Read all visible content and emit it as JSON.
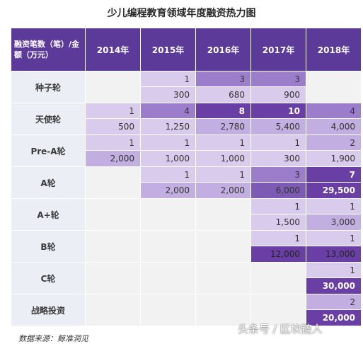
{
  "title": "少儿编程教育领域年度融资热力图",
  "source": "数据来源：鲸准洞见",
  "watermark": "头条号 / 区块链人",
  "colors": {
    "header": "#5b3a9a",
    "label_bg": "#eceef5",
    "empty_bg": "#f2f2f2",
    "scale": [
      "#ede6f5",
      "#d9cbeb",
      "#c2aee0",
      "#9b7dcc",
      "#7d5bb5",
      "#6a3fa5"
    ]
  },
  "chart_data": {
    "type": "heatmap",
    "title": "少儿编程教育领域年度融资热力图",
    "corner_label": "融资笔数（笔）/金额（万元）",
    "years": [
      "2014年",
      "2015年",
      "2016年",
      "2017年",
      "2018年"
    ],
    "rounds": [
      {
        "label": "种子轮",
        "counts": [
          null,
          "1",
          "3",
          "3",
          null
        ],
        "amounts": [
          null,
          "300",
          "680",
          "900",
          null
        ]
      },
      {
        "label": "天使轮",
        "counts": [
          "1",
          "4",
          "8",
          "10",
          "4"
        ],
        "amounts": [
          "500",
          "1,250",
          "2,780",
          "5,400",
          "4,000"
        ]
      },
      {
        "label": "Pre-A轮",
        "counts": [
          "1",
          "1",
          "1",
          "1",
          "2"
        ],
        "amounts": [
          "2,000",
          "1,000",
          "1,000",
          "300",
          "1,900"
        ]
      },
      {
        "label": "A轮",
        "counts": [
          null,
          "1",
          "1",
          "3",
          "7"
        ],
        "amounts": [
          null,
          "2,000",
          "2,000",
          "6,000",
          "29,500"
        ]
      },
      {
        "label": "A+轮",
        "counts": [
          null,
          null,
          null,
          "1",
          "1"
        ],
        "amounts": [
          null,
          null,
          null,
          "1,500",
          "3,000"
        ]
      },
      {
        "label": "B轮",
        "counts": [
          null,
          null,
          null,
          "1",
          "1"
        ],
        "amounts": [
          null,
          null,
          null,
          "12,000",
          "13,000"
        ]
      },
      {
        "label": "C轮",
        "counts": [
          null,
          null,
          null,
          null,
          "1"
        ],
        "amounts": [
          null,
          null,
          null,
          null,
          "30,000"
        ]
      },
      {
        "label": "战略投资",
        "counts": [
          null,
          null,
          null,
          null,
          "2"
        ],
        "amounts": [
          null,
          null,
          null,
          null,
          "20,000"
        ]
      }
    ]
  }
}
